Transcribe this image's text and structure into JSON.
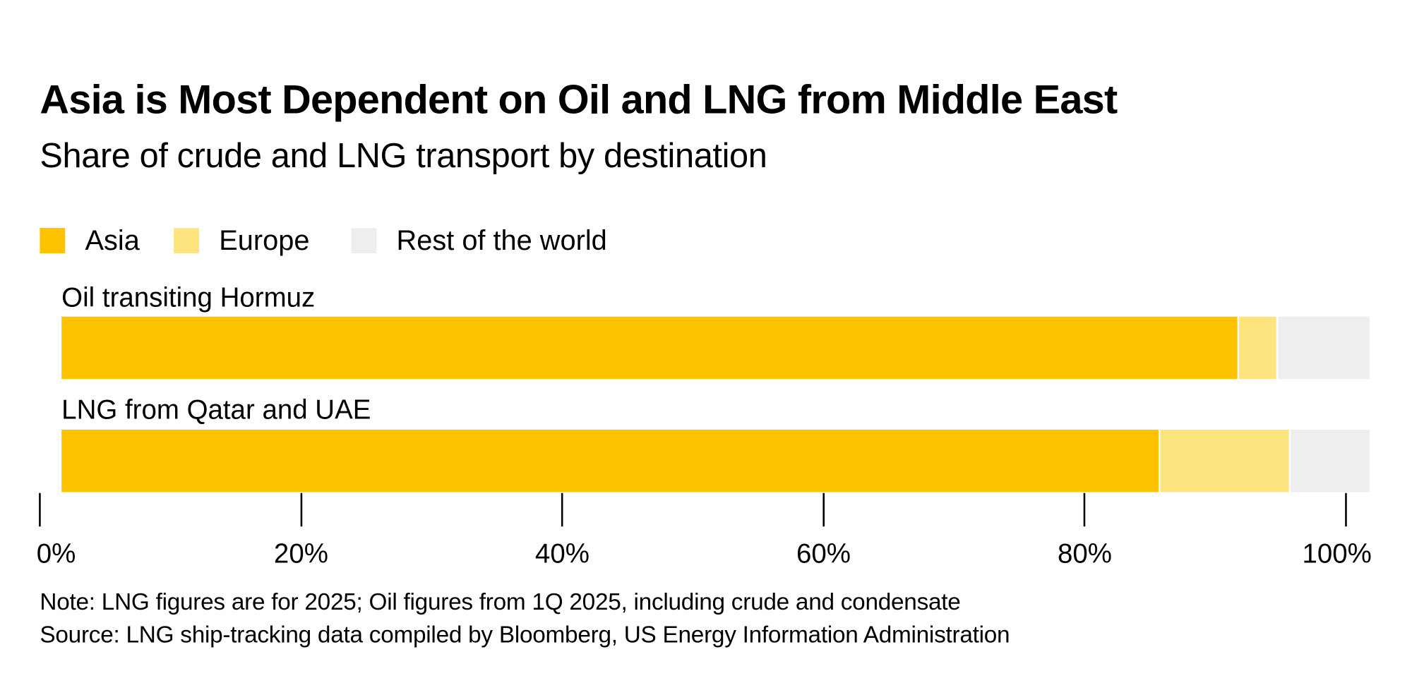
{
  "chart_data": {
    "type": "bar",
    "orientation": "horizontal",
    "stacked": true,
    "title": "Asia is Most Dependent on Oil and LNG from Middle East",
    "subtitle": "Share of crude and LNG transport by destination",
    "categories": [
      "Oil transiting Hormuz",
      "LNG from Qatar and UAE"
    ],
    "series": [
      {
        "name": "Asia",
        "color": "#fdc300",
        "values": [
          90,
          84
        ]
      },
      {
        "name": "Europe",
        "color": "#fde47f",
        "values": [
          3,
          10
        ]
      },
      {
        "name": "Rest of the world",
        "color": "#eeeeee",
        "values": [
          7,
          6
        ]
      }
    ],
    "xlim": [
      0,
      100
    ],
    "xticks": [
      0,
      20,
      40,
      60,
      80,
      100
    ],
    "xtick_labels": [
      "0%",
      "20%",
      "40%",
      "60%",
      "80%",
      "100%"
    ],
    "legend_position": "top-left",
    "note": "Note: LNG figures are for 2025; Oil figures from 1Q 2025, including crude and condensate",
    "source": "Source: LNG ship-tracking data compiled by Bloomberg, US Energy Information Administration"
  }
}
